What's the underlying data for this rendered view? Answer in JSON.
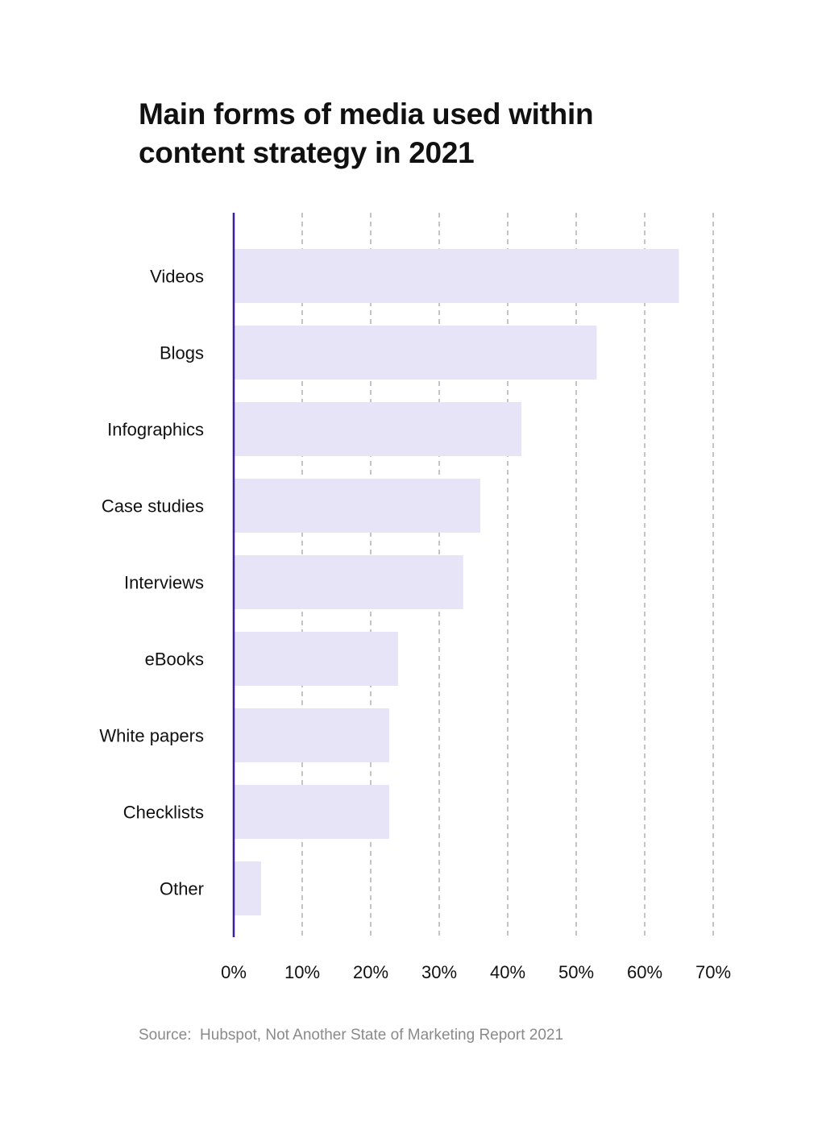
{
  "chart_data": {
    "type": "bar",
    "orientation": "horizontal",
    "title_lines": [
      "Main forms of media used within",
      "content strategy in 2021"
    ],
    "categories": [
      "Videos",
      "Blogs",
      "Infographics",
      "Case studies",
      "Interviews",
      "eBooks",
      "White papers",
      "Checklists",
      "Other"
    ],
    "values": [
      65,
      53,
      42,
      36,
      33.5,
      24,
      22.7,
      22.7,
      4
    ],
    "value_unit": "%",
    "xlim": [
      0,
      70
    ],
    "xticks": [
      "0%",
      "10%",
      "20%",
      "30%",
      "40%",
      "50%",
      "60%",
      "70%"
    ],
    "grid": "vertical-dashed",
    "xlabel": "",
    "ylabel": "",
    "source": "Source:  Hubspot, Not Another State of Marketing Report 2021"
  },
  "colors": {
    "bar": "#e8e4f8",
    "axis": "#3b1fa0",
    "grid": "#c4c4c4",
    "text": "#111111",
    "source": "#8a8a8a"
  }
}
